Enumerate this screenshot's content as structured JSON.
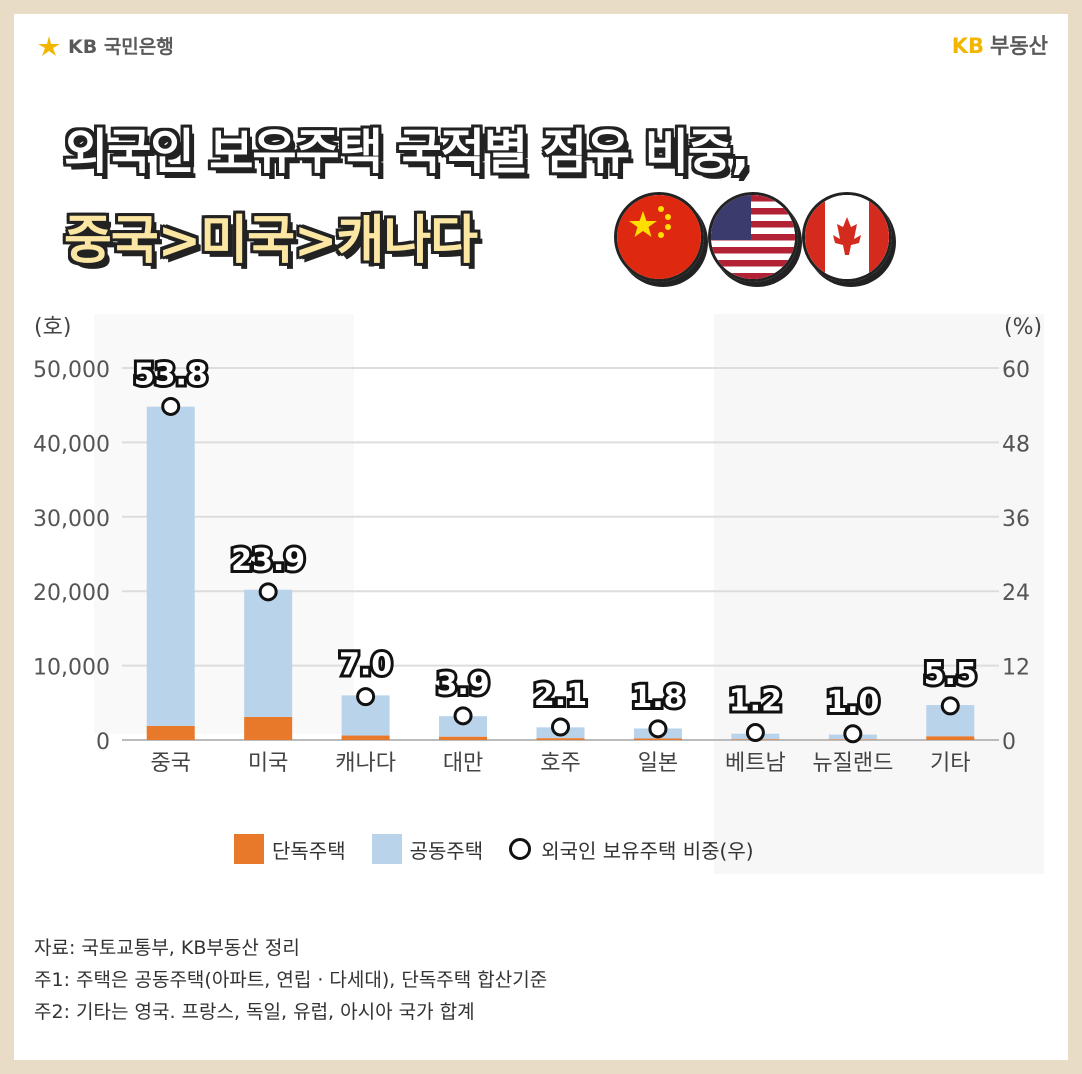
{
  "brand": {
    "left": "KB 국민은행",
    "right_kb": "KB",
    "right": "부동산"
  },
  "title": {
    "line1": "외국인 보유주택 국적별 점유 비중,",
    "line2": "중국>미국>캐나다"
  },
  "flags": [
    "china-flag-icon",
    "usa-flag-icon",
    "canada-flag-icon"
  ],
  "colors": {
    "detached": "#e8782a",
    "apartment": "#b9d3ea",
    "accent": "#f2b600"
  },
  "chart_data": {
    "type": "bar",
    "stacked": true,
    "categories": [
      "중국",
      "미국",
      "캐나다",
      "대만",
      "호주",
      "일본",
      "베트남",
      "뉴질랜드",
      "기타"
    ],
    "series": [
      {
        "name": "단독주택",
        "values": [
          1900,
          3100,
          600,
          450,
          250,
          200,
          100,
          80,
          500
        ]
      },
      {
        "name": "공동주택",
        "values": [
          42900,
          17100,
          5400,
          2750,
          1450,
          1350,
          750,
          650,
          4200
        ]
      }
    ],
    "line_series": {
      "name": "외국인 보유주택 비중(우)",
      "values": [
        53.8,
        23.9,
        7.0,
        3.9,
        2.1,
        1.8,
        1.2,
        1.0,
        5.5
      ],
      "labels": [
        "53.8",
        "23.9",
        "7.0",
        "3.9",
        "2.1",
        "1.8",
        "1.2",
        "1.0",
        "5.5"
      ]
    },
    "ylabel_left": "(호)",
    "ylabel_right": "(%)",
    "ylim_left": [
      0,
      50000
    ],
    "ylim_right": [
      0,
      60
    ],
    "yticks_left": [
      "0",
      "10,000",
      "20,000",
      "30,000",
      "40,000",
      "50,000"
    ],
    "yticks_right": [
      "0",
      "12",
      "24",
      "36",
      "48",
      "60"
    ],
    "grid": true,
    "legend_position": "bottom"
  },
  "legend": {
    "detached": "단독주택",
    "apartment": "공동주택",
    "share": "외국인 보유주택 비중(우)"
  },
  "notes": {
    "source": "자료: 국토교통부, KB부동산 정리",
    "note1": "주1: 주택은 공동주택(아파트, 연립 · 다세대), 단독주택 합산기준",
    "note2": "주2: 기타는 영국. 프랑스, 독일, 유럽, 아시아 국가 합계"
  }
}
